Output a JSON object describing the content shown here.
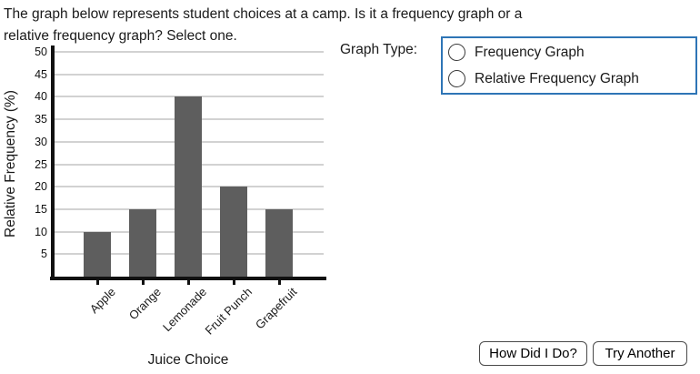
{
  "question": {
    "line1": "The graph below represents student choices at a camp. Is it a frequency graph or a",
    "line2": "relative frequency graph? Select one."
  },
  "chart_data": {
    "type": "bar",
    "categories": [
      "Apple",
      "Orange",
      "Lemonade",
      "Fruit Punch",
      "Grapefruit"
    ],
    "values": [
      10,
      15,
      40,
      20,
      15
    ],
    "title": "",
    "xlabel": "Juice Choice",
    "ylabel": "Relative Frequency (%)",
    "ylim": [
      0,
      50
    ],
    "yticks": [
      5,
      10,
      15,
      20,
      25,
      30,
      35,
      40,
      45,
      50
    ],
    "grid": true,
    "legend": false,
    "bar_color": "#5e5e5e",
    "gridline_color": "#d2d2d2",
    "axis_color": "#111111"
  },
  "graph_type": {
    "label": "Graph Type:",
    "options": [
      {
        "label": "Frequency Graph",
        "selected": false
      },
      {
        "label": "Relative Frequency Graph",
        "selected": false
      }
    ],
    "box_border_color": "#2E75B6"
  },
  "buttons": [
    {
      "label": "How Did I Do?"
    },
    {
      "label": "Try Another"
    }
  ]
}
